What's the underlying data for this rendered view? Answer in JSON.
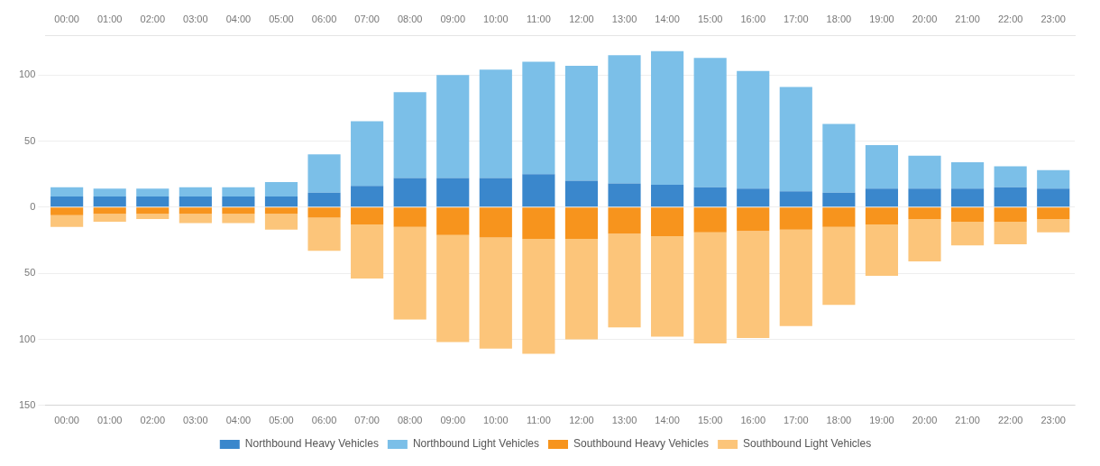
{
  "chart_data": {
    "type": "bar",
    "stacked": true,
    "categories": [
      "00:00",
      "01:00",
      "02:00",
      "03:00",
      "04:00",
      "05:00",
      "06:00",
      "07:00",
      "08:00",
      "09:00",
      "10:00",
      "11:00",
      "12:00",
      "13:00",
      "14:00",
      "15:00",
      "16:00",
      "17:00",
      "18:00",
      "19:00",
      "20:00",
      "21:00",
      "22:00",
      "23:00"
    ],
    "series": [
      {
        "name": "Northbound Heavy Vehicles",
        "color": "#3a87cc",
        "values": [
          8,
          8,
          8,
          8,
          8,
          8,
          11,
          16,
          22,
          22,
          22,
          25,
          20,
          18,
          17,
          15,
          14,
          12,
          11,
          14,
          14,
          14,
          15,
          14
        ]
      },
      {
        "name": "Northbound Light Vehicles",
        "color": "#7bbfe8",
        "values": [
          7,
          6,
          6,
          7,
          7,
          11,
          29,
          49,
          65,
          78,
          82,
          85,
          87,
          97,
          101,
          98,
          89,
          79,
          52,
          33,
          25,
          20,
          16,
          14
        ]
      },
      {
        "name": "Southbound Heavy Vehicles",
        "color": "#f7941d",
        "values": [
          -6,
          -5,
          -5,
          -5,
          -5,
          -5,
          -8,
          -13,
          -15,
          -21,
          -23,
          -24,
          -24,
          -20,
          -22,
          -19,
          -18,
          -17,
          -15,
          -13,
          -9,
          -11,
          -11,
          -9
        ]
      },
      {
        "name": "Southbound Light Vehicles",
        "color": "#fcc57a",
        "values": [
          -9,
          -6,
          -4,
          -7,
          -7,
          -12,
          -25,
          -41,
          -70,
          -81,
          -84,
          -87,
          -76,
          -71,
          -76,
          -84,
          -81,
          -73,
          -59,
          -39,
          -32,
          -18,
          -17,
          -10
        ]
      }
    ],
    "ylim": [
      -150,
      130
    ],
    "yticks": [
      {
        "value": -150,
        "label": "150"
      },
      {
        "value": -100,
        "label": "100"
      },
      {
        "value": -50,
        "label": "50"
      },
      0,
      50,
      100
    ],
    "grid": "y",
    "legend": "bottom"
  }
}
